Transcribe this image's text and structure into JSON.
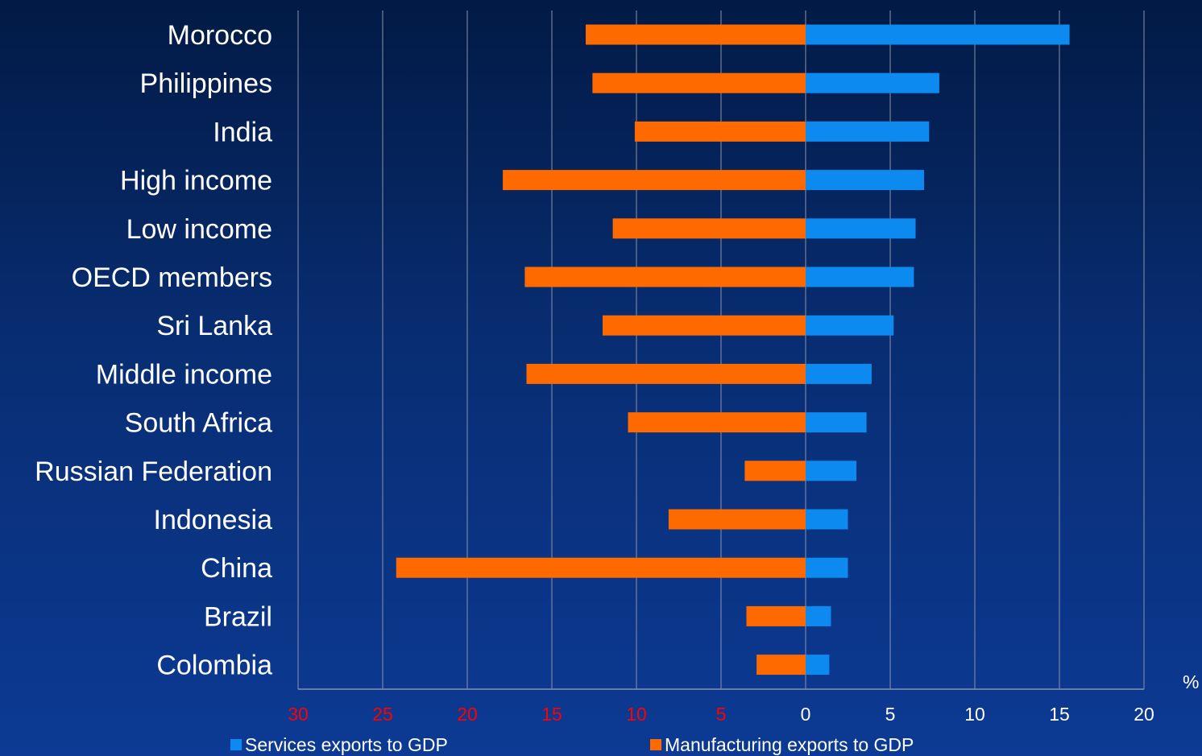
{
  "chart_data": {
    "type": "bar",
    "orientation": "horizontal",
    "layout": "diverging",
    "categories": [
      "Morocco",
      "Philippines",
      "India",
      "High income",
      "Low income",
      "OECD members",
      "Sri Lanka",
      "Middle income",
      "South Africa",
      "Russian Federation",
      "Indonesia",
      "China",
      "Brazil",
      "Colombia"
    ],
    "series": [
      {
        "name": "Services exports to GDP",
        "color": "#0c8af0",
        "direction": "right",
        "values": [
          15.6,
          7.9,
          7.3,
          7.0,
          6.5,
          6.4,
          5.2,
          3.9,
          3.6,
          3.0,
          2.5,
          2.5,
          1.5,
          1.4
        ]
      },
      {
        "name": "Manufacturing exports to GDP",
        "color": "#ff6a00",
        "direction": "left",
        "values": [
          13.0,
          12.6,
          10.1,
          17.9,
          11.4,
          16.6,
          12.0,
          16.5,
          10.5,
          3.6,
          8.1,
          24.2,
          3.5,
          2.9
        ]
      }
    ],
    "x_ticks": {
      "left": [
        "30",
        "25",
        "20",
        "15",
        "10",
        "5"
      ],
      "left_color": "#ff0000",
      "zero": "0",
      "right": [
        "5",
        "10",
        "15",
        "20"
      ],
      "right_color": "#ffffff"
    },
    "xlim_left": 30,
    "xlim_right": 20,
    "unit_label": "%",
    "grid": "vertical",
    "legend": "bottom"
  }
}
